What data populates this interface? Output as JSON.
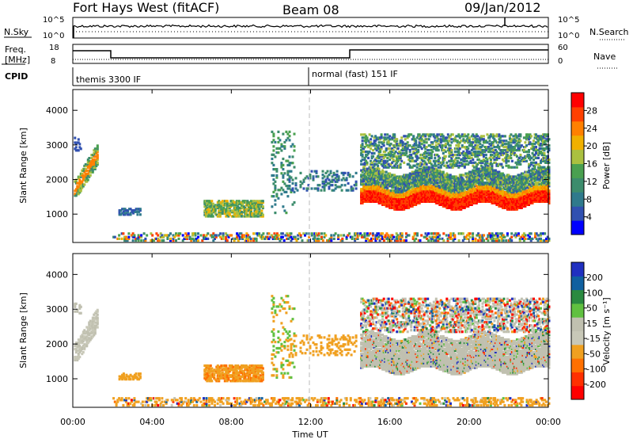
{
  "header": {
    "station": "Fort Hays West (fitACF)",
    "beam": "Beam 08",
    "date": "09/Jan/2012"
  },
  "noise_panel": {
    "left_label": "N.Sky",
    "right_label": "N.Search",
    "left_ticks": [
      "10^5",
      "10^0"
    ],
    "right_ticks": [
      "10^5",
      "10^0"
    ]
  },
  "freq_panel": {
    "left_label_1": "Freq.",
    "left_label_2": "[MHz]",
    "right_label": "Nave",
    "left_ticks": [
      "18",
      "8"
    ],
    "right_ticks": [
      "60",
      "0"
    ],
    "cpid_label": "CPID",
    "cpid_1": "themis 3300 IF",
    "cpid_2": "normal (fast) 151 IF"
  },
  "colors": {
    "power_scale": [
      "#0000ff",
      "#3050b0",
      "#2f7a8c",
      "#3c8c6c",
      "#4aa050",
      "#aac040",
      "#f0b000",
      "#ff8000",
      "#ff4000",
      "#ff0000"
    ],
    "velocity_scale": [
      "#2030c0",
      "#1060a0",
      "#2a8a40",
      "#60c040",
      "#c0c0b0",
      "#c8c8b8",
      "#f0a020",
      "#ff7000",
      "#ff3000",
      "#ff0000"
    ]
  },
  "chart_data": [
    {
      "type": "heatmap",
      "name": "power",
      "ylabel": "Slant Range [km]",
      "yticks": [
        1000,
        2000,
        3000,
        4000
      ],
      "ylim": [
        180,
        4600
      ],
      "xlim": [
        0,
        24
      ],
      "xticks": [
        0,
        4,
        8,
        12,
        16,
        20,
        24
      ],
      "colorbar_label": "Power [dB]",
      "colorbar_ticks": [
        "28",
        "24",
        "20",
        "16",
        "12",
        "8",
        "4"
      ]
    },
    {
      "type": "heatmap",
      "name": "velocity",
      "ylabel": "Slant Range [km]",
      "yticks": [
        1000,
        2000,
        3000,
        4000
      ],
      "ylim": [
        180,
        4600
      ],
      "xlim": [
        0,
        24
      ],
      "xticks": [
        0,
        4,
        8,
        12,
        16,
        20,
        24
      ],
      "colorbar_label": "Velocity [m s⁻¹]",
      "colorbar_ticks": [
        "200",
        "100",
        "50",
        "15",
        "-15",
        "-50",
        "-100",
        "-200"
      ]
    }
  ],
  "xaxis": {
    "label": "Time UT",
    "tick_labels": [
      "00:00",
      "04:00",
      "08:00",
      "12:00",
      "16:00",
      "20:00",
      "00:00"
    ]
  }
}
